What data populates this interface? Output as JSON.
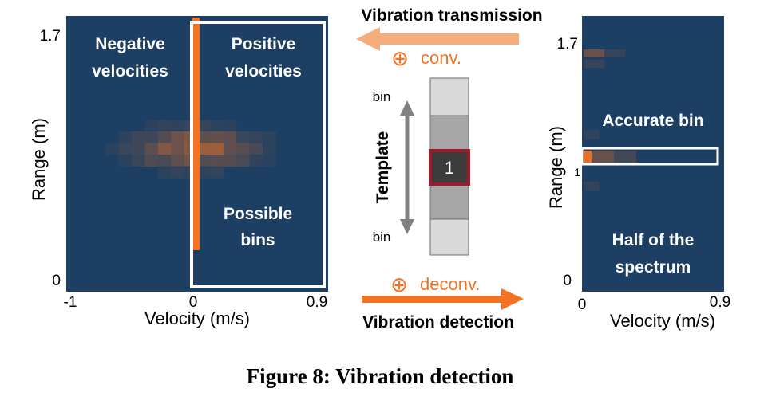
{
  "colors": {
    "spectrum_bg": "#1d3f63",
    "accent": "#f27221",
    "accent_light": "#f6ad7c",
    "template_light": "#d9d9d9",
    "template_mid": "#a6a6a6",
    "template_dark": "#3c3c3c",
    "template_border": "#9e1b2d"
  },
  "left_panel": {
    "y_max_tick": "1.7",
    "y_min_tick": "0",
    "x_min_tick": "-1",
    "x_mid_tick": "0",
    "x_max_tick": "0.9",
    "ylabel": "Range (m)",
    "xlabel": "Velocity (m/s)",
    "negative_label_1": "Negative",
    "negative_label_2": "velocities",
    "positive_label_1": "Positive",
    "positive_label_2": "velocities",
    "possible_label_1": "Possible",
    "possible_label_2": "bins"
  },
  "middle": {
    "top_title": "Vibration transmission",
    "conv_label": "conv.",
    "deconv_label": "deconv.",
    "bottom_title": "Vibration detection",
    "template_label": "Template",
    "bin_top": "bin",
    "bin_bottom": "bin",
    "center_value": "1",
    "oplus_icon": "⊕"
  },
  "right_panel": {
    "y_max_tick": "1.7",
    "y_one_tick": "1",
    "y_min_tick": "0",
    "x_min_tick": "0",
    "x_max_tick": "0.9",
    "ylabel": "Range (m)",
    "xlabel": "Velocity (m/s)",
    "accurate_label": "Accurate bin",
    "half_label_1": "Half of the",
    "half_label_2": "spectrum"
  },
  "caption": "Figure 8: Vibration detection"
}
